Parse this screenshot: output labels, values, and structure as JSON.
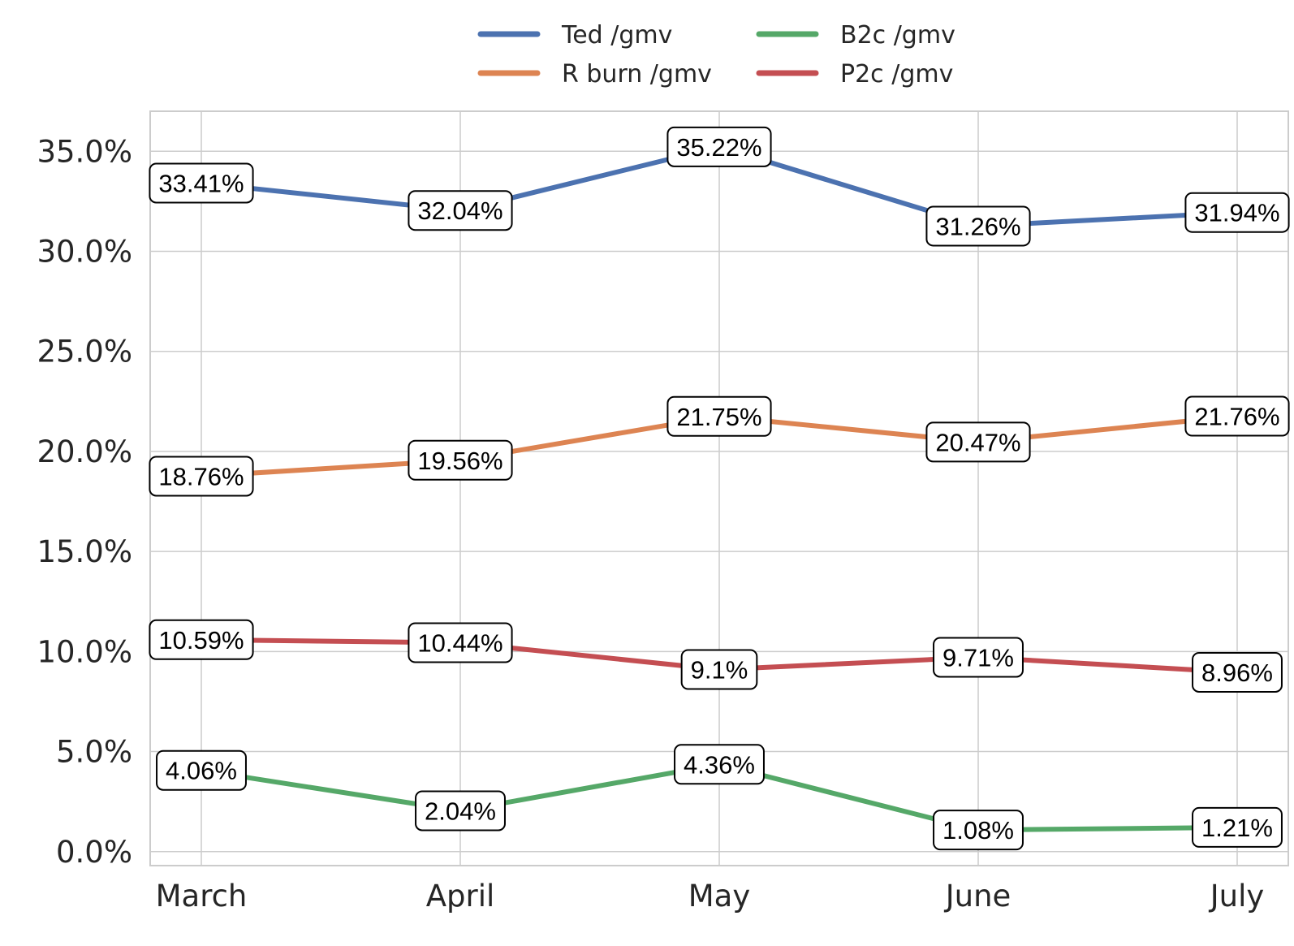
{
  "chart_data": {
    "type": "line",
    "categories": [
      "March",
      "April",
      "May",
      "June",
      "July"
    ],
    "series": [
      {
        "name": "Ted /gmv",
        "color": "#4c72b0",
        "values": [
          33.41,
          32.04,
          35.22,
          31.26,
          31.94
        ],
        "labels": [
          "33.41%",
          "32.04%",
          "35.22%",
          "31.26%",
          "31.94%"
        ]
      },
      {
        "name": "R burn /gmv",
        "color": "#dd8452",
        "values": [
          18.76,
          19.56,
          21.75,
          20.47,
          21.76
        ],
        "labels": [
          "18.76%",
          "19.56%",
          "21.75%",
          "20.47%",
          "21.76%"
        ]
      },
      {
        "name": "B2c /gmv",
        "color": "#55a868",
        "values": [
          4.06,
          2.04,
          4.36,
          1.08,
          1.21
        ],
        "labels": [
          "4.06%",
          "2.04%",
          "4.36%",
          "1.08%",
          "1.21%"
        ]
      },
      {
        "name": "P2c /gmv",
        "color": "#c44e52",
        "values": [
          10.59,
          10.44,
          9.1,
          9.71,
          8.96
        ],
        "labels": [
          "10.59%",
          "10.44%",
          "9.1%",
          "9.71%",
          "8.96%"
        ]
      }
    ],
    "y_ticks": [
      0,
      5,
      10,
      15,
      20,
      25,
      30,
      35
    ],
    "y_tick_labels": [
      "0.0%",
      "5.0%",
      "10.0%",
      "15.0%",
      "20.0%",
      "25.0%",
      "30.0%",
      "35.0%"
    ],
    "ylim": [
      -0.7,
      37
    ],
    "grid": true,
    "legend_position": "top-center"
  }
}
